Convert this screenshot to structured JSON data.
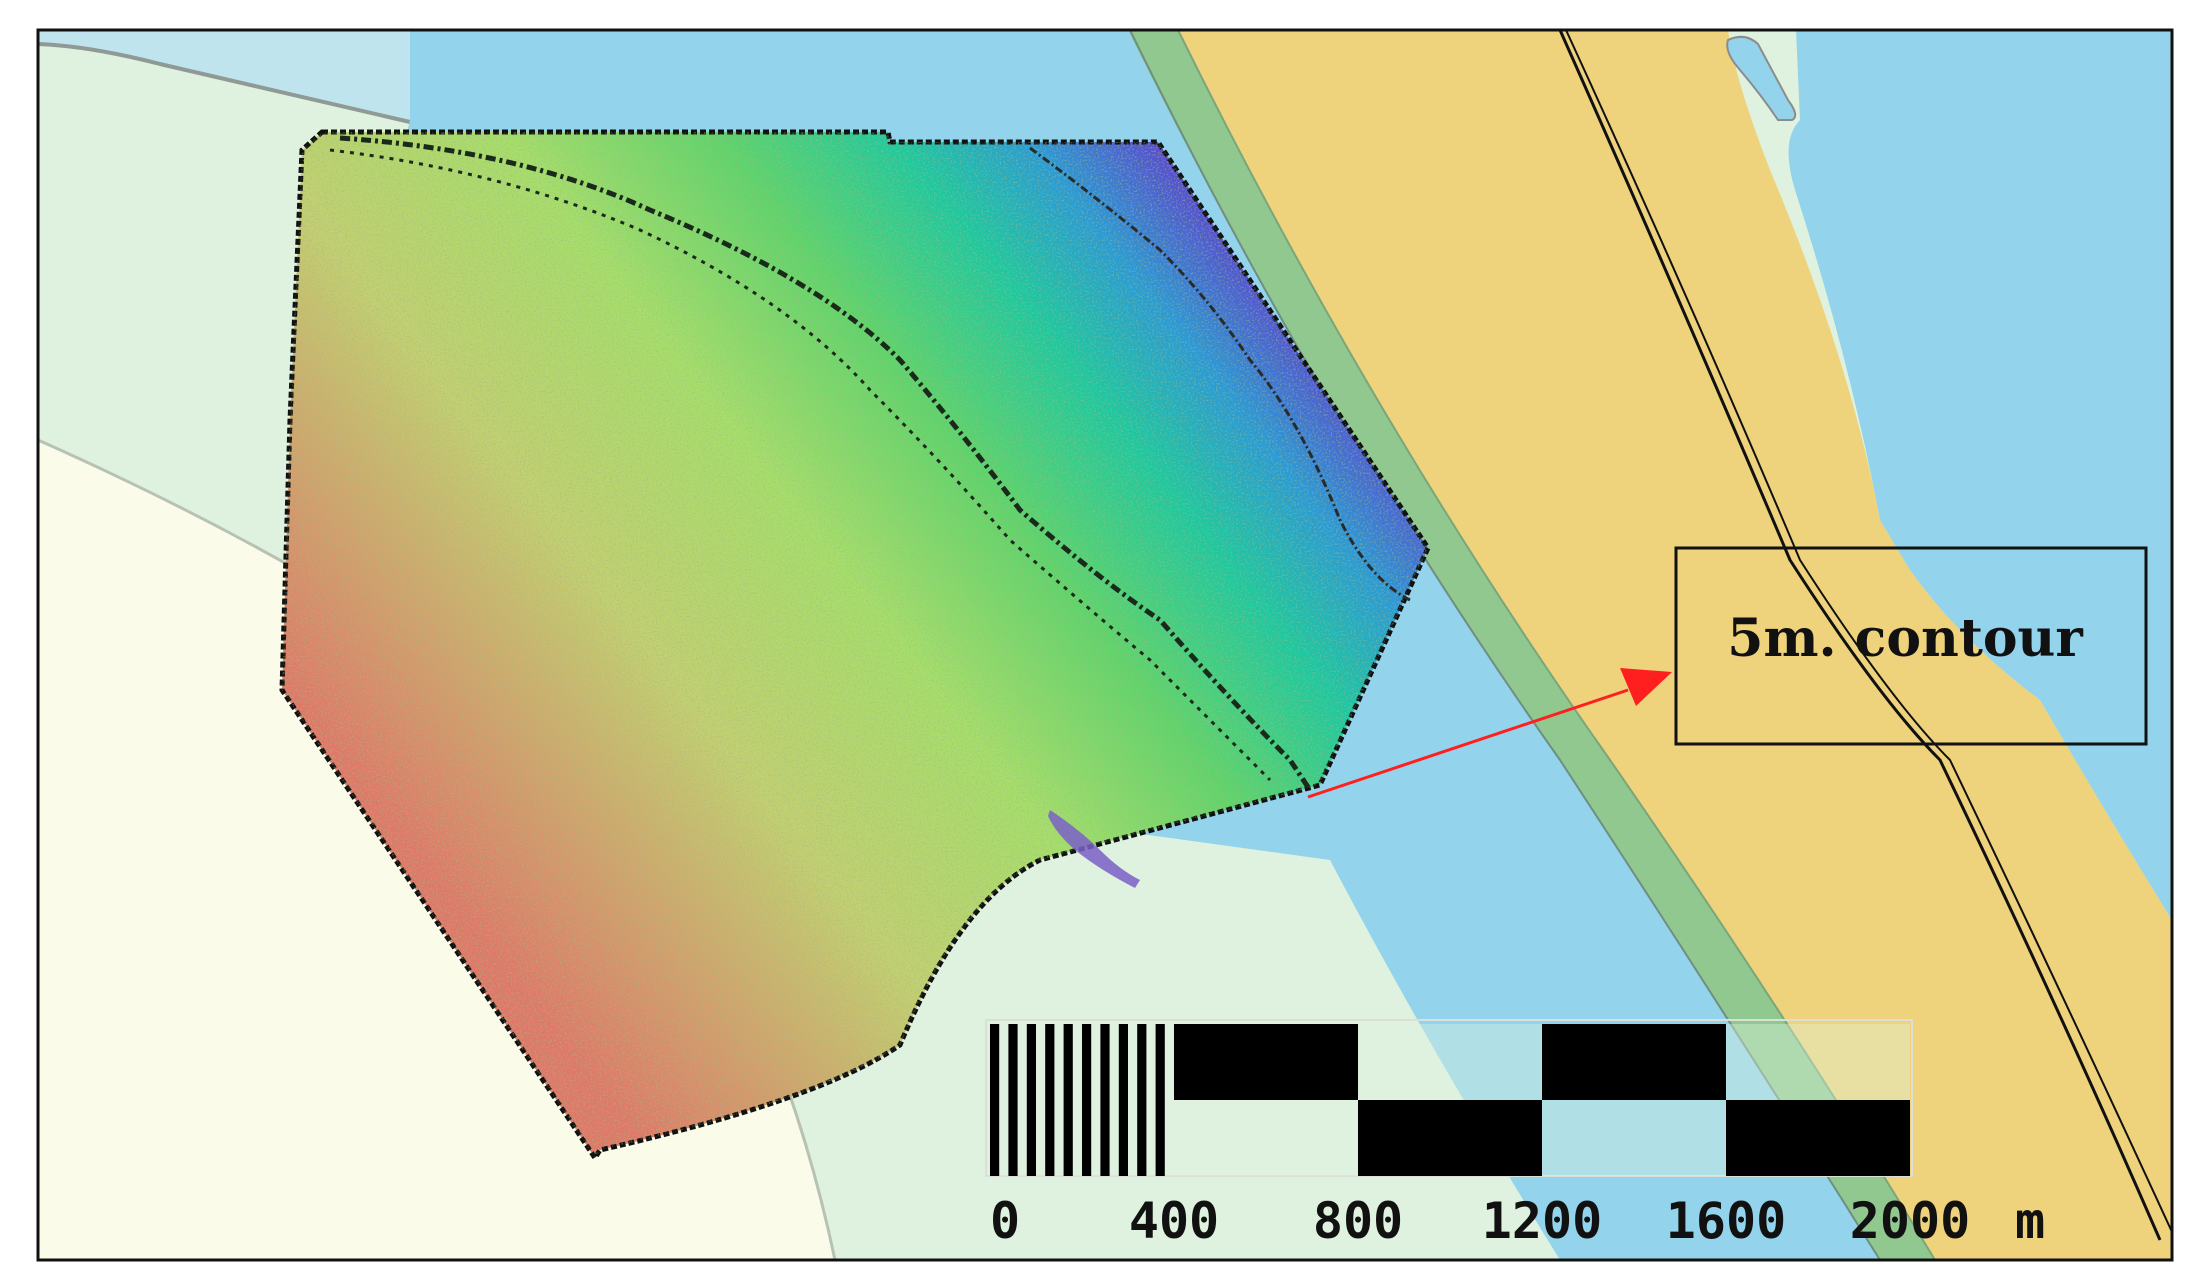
{
  "map": {
    "callout": {
      "label": "5m. contour"
    },
    "scale_bar": {
      "ticks": [
        "0",
        "400",
        "800",
        "1200",
        "1600",
        "2000"
      ],
      "unit": "m"
    },
    "legend_colors": {
      "land_light": "#dff2df",
      "land_pale": "#fafce9",
      "water": "#93d3ec",
      "water_shallow": "#bfe4ee",
      "dredged_channel": "#eed27c",
      "bank_green": "#90c890",
      "callout_arrow": "#ff1f1f"
    },
    "bathymetry_colormap": [
      "#e07868",
      "#b5d968",
      "#5fd45f",
      "#18c8a8",
      "#2a8cd8",
      "#5a4ad0"
    ]
  }
}
